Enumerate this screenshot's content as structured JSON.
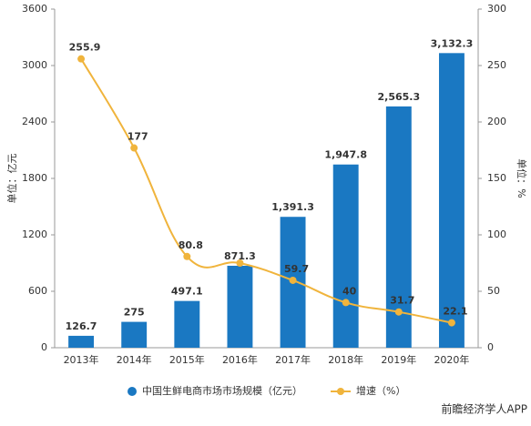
{
  "chart_data": {
    "type": "bar_line",
    "categories": [
      "2013年",
      "2014年",
      "2015年",
      "2016年",
      "2017年",
      "2018年",
      "2019年",
      "2020年"
    ],
    "series": [
      {
        "name": "中国生鲜电商市场市场规模（亿元）",
        "color": "#1a78c2",
        "type": "bar",
        "values": [
          126.7,
          275,
          497.1,
          871.3,
          1391.3,
          1947.8,
          2565.3,
          3132.3
        ],
        "value_labels": [
          "126.7",
          "275",
          "497.1",
          "871.3",
          "1,391.3",
          "1,947.8",
          "2,565.3",
          "3,132.3"
        ]
      },
      {
        "name": "增速（%）",
        "color": "#f0b43c",
        "type": "line",
        "axis": "y2",
        "values": [
          255.9,
          177,
          80.8,
          75,
          59.7,
          40,
          31.7,
          22.1
        ],
        "value_labels": [
          "255.9",
          "177",
          "80.8",
          null,
          "59.7",
          "40",
          "31.7",
          "22.1"
        ]
      }
    ],
    "ylabel": "单位：亿元",
    "y2label": "单位：%",
    "ylim": [
      0,
      3600
    ],
    "yticks": [
      0,
      600,
      1200,
      1800,
      2400,
      3000,
      3600
    ],
    "y2lim": [
      0,
      300
    ],
    "y2ticks": [
      0,
      50,
      100,
      150,
      200,
      250,
      300
    ],
    "footer": "前瞻经济学人APP"
  }
}
